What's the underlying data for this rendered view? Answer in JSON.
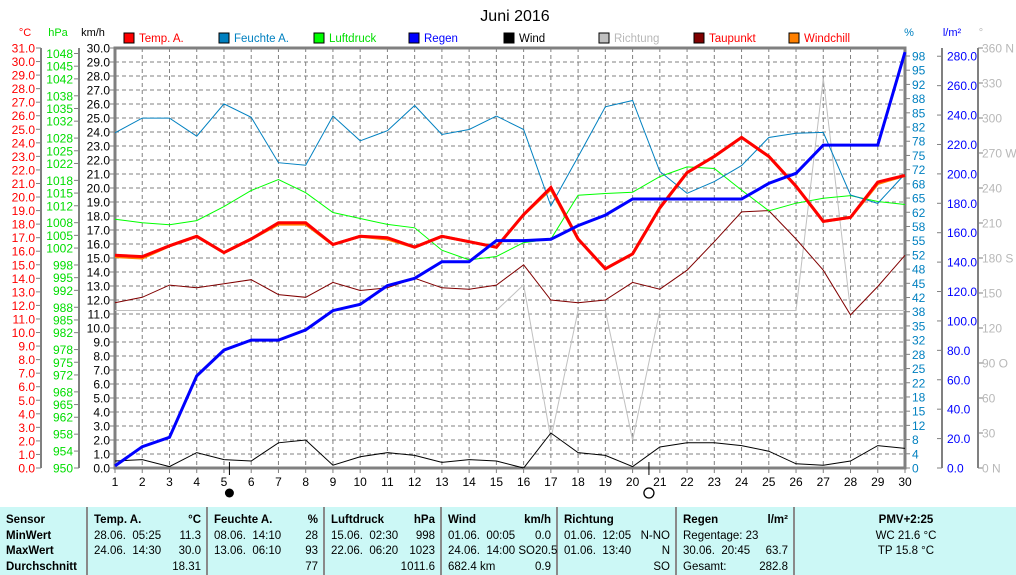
{
  "chart_data": {
    "type": "line",
    "title": "Juni 2016",
    "x": [
      1,
      2,
      3,
      4,
      5,
      6,
      7,
      8,
      9,
      10,
      11,
      12,
      13,
      14,
      15,
      16,
      17,
      18,
      19,
      20,
      21,
      22,
      23,
      24,
      25,
      26,
      27,
      28,
      29,
      30
    ],
    "grid": true,
    "legend_position": "top",
    "axes": {
      "temp": {
        "unit": "°C",
        "ylim": [
          0,
          31
        ],
        "color": "#ff0000",
        "ticks": [
          "0.0",
          "1.0",
          "2.0",
          "3.0",
          "4.0",
          "5.0",
          "6.0",
          "7.0",
          "8.0",
          "9.0",
          "10.0",
          "11.0",
          "12.0",
          "13.0",
          "14.0",
          "15.0",
          "16.0",
          "17.0",
          "18.0",
          "19.0",
          "20.0",
          "21.0",
          "22.0",
          "23.0",
          "24.0",
          "25.0",
          "26.0",
          "27.0",
          "28.0",
          "29.0",
          "30.0",
          "31.0"
        ]
      },
      "pressure": {
        "unit": "hPa",
        "ylim": [
          950,
          1049.3
        ],
        "color": "#00ee00",
        "ticks": [
          "950",
          "954",
          "958",
          "962",
          "965",
          "968",
          "972",
          "975",
          "978",
          "982",
          "985",
          "988",
          "992",
          "995",
          "998",
          "1002",
          "1005",
          "1008",
          "1012",
          "1015",
          "1018",
          "1022",
          "1025",
          "1028",
          "1032",
          "1035",
          "1038",
          "1042",
          "1045",
          "1048"
        ]
      },
      "wind": {
        "unit": "km/h",
        "ylim": [
          0,
          30
        ],
        "color": "#000000",
        "ticks": [
          "0.0",
          "1.0",
          "2.0",
          "3.0",
          "4.0",
          "5.0",
          "6.0",
          "7.0",
          "8.0",
          "9.0",
          "10.0",
          "11.0",
          "12.0",
          "13.0",
          "14.0",
          "15.0",
          "16.0",
          "17.0",
          "18.0",
          "19.0",
          "20.0",
          "21.0",
          "22.0",
          "23.0",
          "24.0",
          "25.0",
          "26.0",
          "27.0",
          "28.0",
          "29.0",
          "30.0"
        ]
      },
      "humidity": {
        "unit": "%",
        "ylim": [
          0,
          100
        ],
        "color": "#0080c0",
        "ticks": [
          "0",
          "4",
          "8",
          "12",
          "15",
          "18",
          "22",
          "25",
          "28",
          "32",
          "35",
          "38",
          "42",
          "45",
          "48",
          "52",
          "55",
          "58",
          "62",
          "65",
          "68",
          "72",
          "75",
          "78",
          "82",
          "85",
          "88",
          "92",
          "95",
          "98"
        ]
      },
      "rain": {
        "unit": "l/m²",
        "ylim": [
          0,
          285.6
        ],
        "color": "#0000ff",
        "ticks": [
          "0.0",
          "20.0",
          "40.0",
          "60.0",
          "80.0",
          "100.0",
          "120.0",
          "140.0",
          "160.0",
          "180.0",
          "200.0",
          "220.0",
          "240.0",
          "260.0",
          "280.0"
        ]
      },
      "direction": {
        "unit": "°",
        "ylim": [
          0,
          360
        ],
        "color": "#b8b8b8",
        "ticks": [
          "0  N",
          "30",
          "60",
          "90  O",
          "120",
          "150",
          "180  S",
          "210",
          "240",
          "270  W",
          "300",
          "330",
          "360  N"
        ]
      }
    },
    "series": [
      {
        "name": "Richtung",
        "axis": "direction",
        "color": "#c0c0c0",
        "width": 1,
        "values": [
          135,
          135,
          135,
          135,
          135,
          135,
          135,
          135,
          135,
          135,
          135,
          135,
          135,
          135,
          135,
          157,
          25,
          135,
          135,
          24,
          135,
          135,
          135,
          135,
          135,
          135,
          334,
          135,
          135,
          135
        ]
      },
      {
        "name": "Wind",
        "axis": "wind",
        "color": "#000000",
        "width": 1,
        "values": [
          0.5,
          0.6,
          0.1,
          1.1,
          0.6,
          0.5,
          1.8,
          2.0,
          0.2,
          0.8,
          1.1,
          0.9,
          0.4,
          0.6,
          0.5,
          0.0,
          2.5,
          1.1,
          0.9,
          0.1,
          1.5,
          1.8,
          1.8,
          1.6,
          1.2,
          0.3,
          0.2,
          0.5,
          1.6,
          1.4
        ]
      },
      {
        "name": "Taupunkt",
        "axis": "temp",
        "color": "#800000",
        "width": 1,
        "values": [
          12.2,
          12.6,
          13.5,
          13.3,
          13.6,
          13.9,
          12.8,
          12.6,
          13.7,
          13.1,
          13.3,
          14.0,
          13.3,
          13.2,
          13.5,
          15.0,
          12.4,
          12.2,
          12.4,
          13.7,
          13.2,
          14.6,
          16.7,
          18.9,
          19.0,
          16.9,
          14.6,
          11.3,
          13.4,
          15.7
        ]
      },
      {
        "name": "Windchill",
        "axis": "temp",
        "color": "#ff8000",
        "width": 3,
        "values": [
          15.6,
          15.5,
          16.4,
          17.1,
          15.9,
          16.9,
          18.0,
          18.0,
          16.5,
          17.1,
          16.9,
          16.3,
          17.1,
          16.7,
          16.3,
          18.7,
          20.6,
          16.9,
          14.7,
          15.8,
          19.2,
          21.8,
          23.0,
          24.4,
          23.0,
          20.8,
          18.2,
          18.5,
          21.0,
          21.6
        ]
      },
      {
        "name": "Luftdruck",
        "axis": "pressure",
        "color": "#00ff00",
        "width": 1,
        "values": [
          1008.8,
          1008.0,
          1007.5,
          1008.5,
          1011.8,
          1015.6,
          1018.2,
          1015.1,
          1010.4,
          1009.0,
          1007.6,
          1006.8,
          1001.5,
          999.2,
          1000.0,
          1003.3,
          1004.1,
          1014.5,
          1014.9,
          1015.2,
          1018.9,
          1021.2,
          1020.8,
          1015.7,
          1010.8,
          1012.6,
          1013.8,
          1014.4,
          1013.0,
          1012.3
        ]
      },
      {
        "name": "Feuchte A.",
        "axis": "humidity",
        "color": "#0080c0",
        "width": 1,
        "values": [
          79.8,
          83.3,
          83.3,
          79.0,
          86.7,
          83.5,
          72.7,
          72.1,
          83.8,
          77.9,
          80.3,
          86.3,
          79.4,
          80.6,
          83.8,
          80.6,
          62.4,
          74.1,
          86.0,
          87.5,
          70.6,
          65.4,
          68.2,
          72.0,
          78.7,
          79.7,
          79.9,
          65.0,
          63.0,
          70.0
        ]
      },
      {
        "name": "Temp. A.",
        "axis": "temp",
        "color": "#ff0000",
        "width": 3,
        "values": [
          15.7,
          15.6,
          16.4,
          17.1,
          15.9,
          16.9,
          18.1,
          18.1,
          16.5,
          17.1,
          17.0,
          16.3,
          17.1,
          16.7,
          16.3,
          18.7,
          20.7,
          16.9,
          14.7,
          15.8,
          19.2,
          21.8,
          23.0,
          24.4,
          23.0,
          20.8,
          18.2,
          18.5,
          21.1,
          21.6
        ]
      },
      {
        "name": "Regen",
        "axis": "rain",
        "color": "#0000ff",
        "width": 3,
        "values": [
          1.4,
          14.5,
          20.9,
          62.6,
          80.2,
          87.0,
          87.0,
          93.9,
          107.0,
          111.3,
          124.0,
          129.0,
          140.3,
          140.3,
          154.6,
          154.6,
          155.5,
          164.8,
          172.0,
          182.9,
          182.9,
          182.9,
          182.9,
          182.9,
          193.5,
          200.4,
          219.6,
          219.6,
          219.6,
          282.8
        ]
      }
    ],
    "legend": [
      {
        "label": "Temp. A.",
        "color": "#ff0000",
        "text_color": "#ff0000"
      },
      {
        "label": "Feuchte A.",
        "color": "#0080c0",
        "text_color": "#0080c0"
      },
      {
        "label": "Luftdruck",
        "color": "#00ff00",
        "text_color": "#00dd00"
      },
      {
        "label": "Regen",
        "color": "#0000ff",
        "text_color": "#0000ff"
      },
      {
        "label": "Wind",
        "color": "#000000",
        "text_color": "#000000"
      },
      {
        "label": "Richtung",
        "color": "#c0c0c0",
        "text_color": "#b8b8b8"
      },
      {
        "label": "Taupunkt",
        "color": "#800000",
        "text_color": "#ff0000"
      },
      {
        "label": "Windchill",
        "color": "#ff8000",
        "text_color": "#ff0000"
      }
    ],
    "moon_phases": [
      {
        "phase": "new-moon",
        "day": 5.2
      },
      {
        "phase": "full-moon",
        "day": 20.6
      }
    ]
  },
  "stats": {
    "sensor": {
      "header": "Sensor",
      "rows": [
        "MinWert",
        "MaxWert",
        "Durchschnitt"
      ]
    },
    "columns": [
      {
        "header": "Temp. A.",
        "unit": "°C",
        "rows": [
          [
            "28.06.  05:25",
            "11.3"
          ],
          [
            "24.06.  14:30",
            "30.0"
          ],
          [
            "",
            "18.31"
          ]
        ]
      },
      {
        "header": "Feuchte A.",
        "unit": "%",
        "rows": [
          [
            "08.06.  14:10",
            "28"
          ],
          [
            "13.06.  06:10",
            "93"
          ],
          [
            "",
            "77"
          ]
        ]
      },
      {
        "header": "Luftdruck",
        "unit": "hPa",
        "rows": [
          [
            "15.06.  02:30",
            "998"
          ],
          [
            "22.06.  06:20",
            "1023"
          ],
          [
            "",
            "1011.6"
          ]
        ]
      },
      {
        "header": "Wind",
        "unit": "km/h",
        "rows": [
          [
            "01.06.  00:05",
            "0.0"
          ],
          [
            "24.06.  14:00 SO",
            "20.5"
          ],
          [
            "682.4 km",
            "0.9"
          ]
        ]
      },
      {
        "header": "Richtung",
        "unit": "",
        "rows": [
          [
            "01.06.  12:05",
            "N-NO"
          ],
          [
            "01.06.  13:40",
            "N"
          ],
          [
            "",
            "SO"
          ]
        ]
      },
      {
        "header": "Regen",
        "unit": "l/m²",
        "rows": [
          [
            "Regentage: 23",
            ""
          ],
          [
            "30.06.  20:45",
            "63.7"
          ],
          [
            "Gesamt:",
            "282.8"
          ]
        ]
      }
    ],
    "pmv": {
      "header": "PMV+2:25",
      "rows": [
        "WC 21.6 °C",
        "TP 15.8 °C"
      ]
    }
  }
}
